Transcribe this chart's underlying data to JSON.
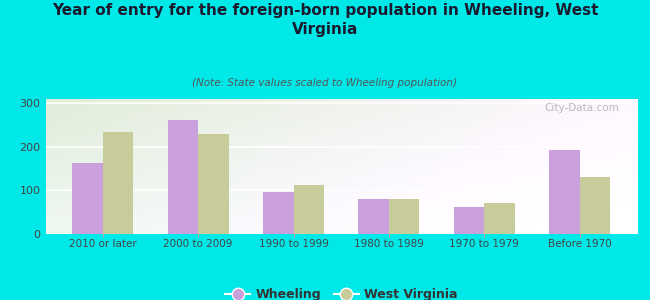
{
  "title": "Year of entry for the foreign-born population in Wheeling, West\nVirginia",
  "subtitle": "(Note: State values scaled to Wheeling population)",
  "categories": [
    "2010 or later",
    "2000 to 2009",
    "1990 to 1999",
    "1980 to 1989",
    "1970 to 1979",
    "Before 1970"
  ],
  "wheeling_values": [
    162,
    262,
    97,
    80,
    63,
    192
  ],
  "wv_values": [
    235,
    230,
    112,
    80,
    72,
    132
  ],
  "wheeling_color": "#c9a0dc",
  "wv_color": "#c8cc9a",
  "background_color": "#00e8e8",
  "plot_bg_topleft": "#dff0d8",
  "plot_bg_topright": "#f5f5f0",
  "plot_bg_bottom": "#ffffff",
  "bar_width": 0.32,
  "watermark": "City-Data.com",
  "legend_wheeling": "Wheeling",
  "legend_wv": "West Virginia",
  "yticks": [
    0,
    100,
    200,
    300
  ],
  "ylim": [
    0,
    310
  ]
}
